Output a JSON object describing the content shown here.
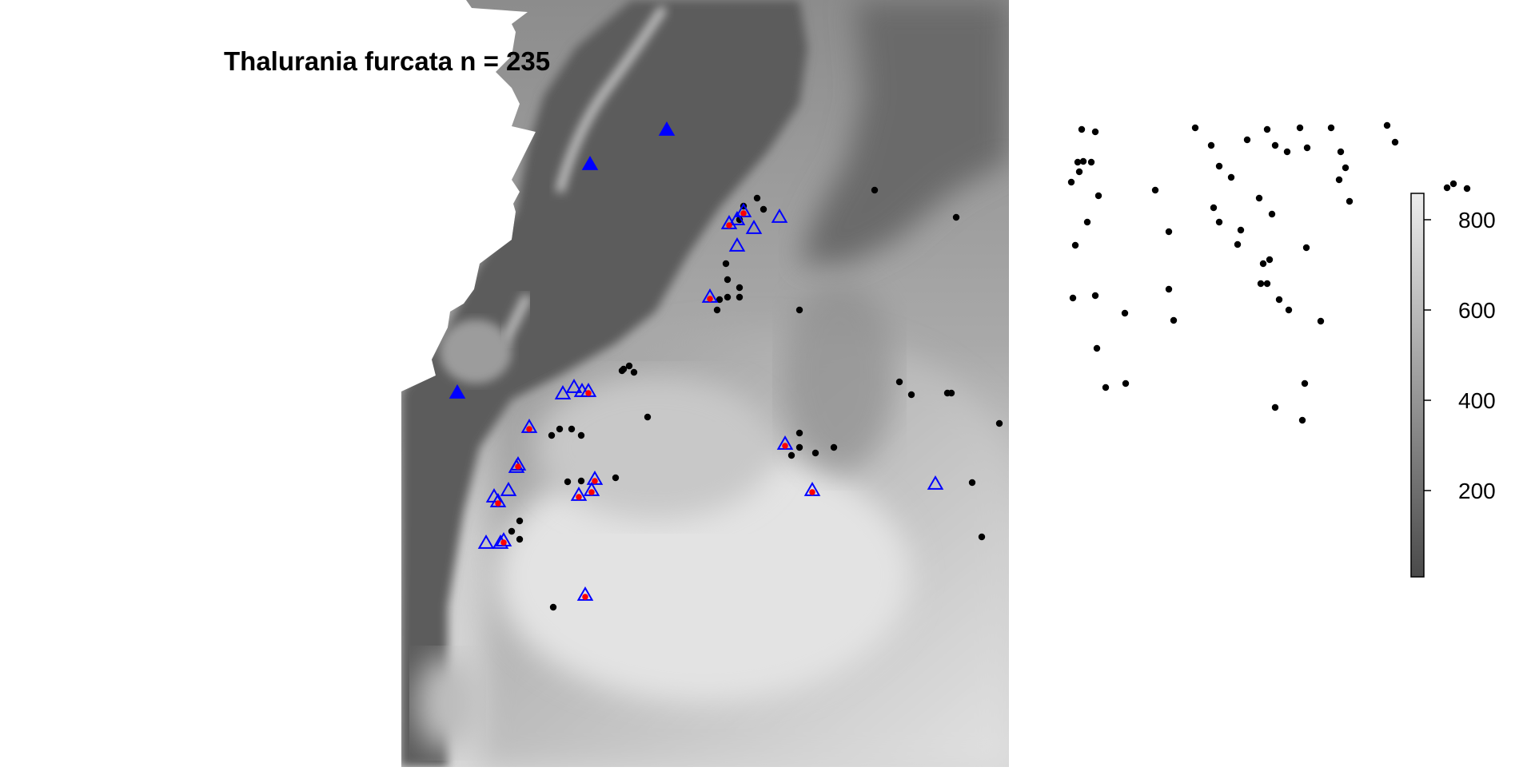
{
  "title": "Thalurania furcata n = 235",
  "legend": {
    "ramp": "grey",
    "colors": [
      "#4a4a4a",
      "#ececec"
    ],
    "ticks": [
      {
        "value": 200,
        "label": "200"
      },
      {
        "value": 400,
        "label": "400"
      },
      {
        "value": 600,
        "label": "600"
      },
      {
        "value": 800,
        "label": "800"
      }
    ],
    "range": [
      0,
      850
    ]
  },
  "markers": {
    "background_point": {
      "color": "#000000"
    },
    "open_triangle": {
      "color": "#0000ff"
    },
    "filled_triangle": {
      "color": "#0000ff"
    },
    "red_dot": {
      "color": "#ff0000"
    }
  }
}
